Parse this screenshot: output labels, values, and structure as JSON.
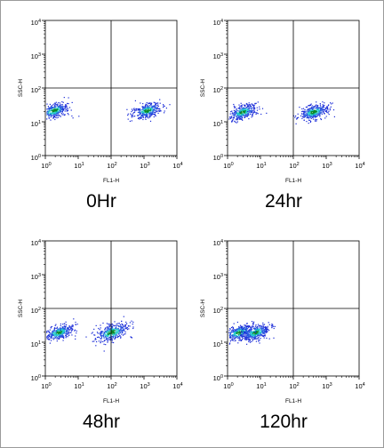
{
  "chart_data": [
    {
      "type": "scatter",
      "title": "0Hr",
      "xlabel": "FL1-H",
      "ylabel": "SSC-H",
      "xscale": "log",
      "yscale": "log",
      "xlim": [
        1,
        10000
      ],
      "ylim": [
        1,
        10000
      ],
      "xticks": [
        "10^0",
        "10^1",
        "10^2",
        "10^3",
        "10^4"
      ],
      "yticks": [
        "10^0",
        "10^1",
        "10^2",
        "10^3",
        "10^4"
      ],
      "quadrant_gate": {
        "x": 100,
        "y": 100
      },
      "populations": [
        {
          "center_x": 1.8,
          "center_y": 22,
          "relative_size": 1.0
        },
        {
          "center_x": 1200,
          "center_y": 22,
          "relative_size": 1.0
        }
      ]
    },
    {
      "type": "scatter",
      "title": "24hr",
      "xlabel": "FL1-H",
      "ylabel": "SSC-H",
      "xscale": "log",
      "yscale": "log",
      "xlim": [
        1,
        10000
      ],
      "ylim": [
        1,
        10000
      ],
      "xticks": [
        "10^0",
        "10^1",
        "10^2",
        "10^3",
        "10^4"
      ],
      "yticks": [
        "10^0",
        "10^1",
        "10^2",
        "10^3",
        "10^4"
      ],
      "quadrant_gate": {
        "x": 100,
        "y": 100
      },
      "populations": [
        {
          "center_x": 2.8,
          "center_y": 20,
          "relative_size": 1.0
        },
        {
          "center_x": 400,
          "center_y": 20,
          "relative_size": 1.0
        }
      ]
    },
    {
      "type": "scatter",
      "title": "48hr",
      "xlabel": "FL1-H",
      "ylabel": "SSC-H",
      "xscale": "log",
      "yscale": "log",
      "xlim": [
        1,
        10000
      ],
      "ylim": [
        1,
        10000
      ],
      "xticks": [
        "10^0",
        "10^1",
        "10^2",
        "10^3",
        "10^4"
      ],
      "yticks": [
        "10^0",
        "10^1",
        "10^2",
        "10^3",
        "10^4"
      ],
      "quadrant_gate": {
        "x": 100,
        "y": 100
      },
      "populations": [
        {
          "center_x": 2.5,
          "center_y": 20,
          "relative_size": 1.0
        },
        {
          "center_x": 100,
          "center_y": 20,
          "relative_size": 1.2
        }
      ]
    },
    {
      "type": "scatter",
      "title": "120hr",
      "xlabel": "FL1-H",
      "ylabel": "SSC-H",
      "xscale": "log",
      "yscale": "log",
      "xlim": [
        1,
        10000
      ],
      "ylim": [
        1,
        10000
      ],
      "xticks": [
        "10^0",
        "10^1",
        "10^2",
        "10^3",
        "10^4"
      ],
      "yticks": [
        "10^0",
        "10^1",
        "10^2",
        "10^3",
        "10^4"
      ],
      "quadrant_gate": {
        "x": 100,
        "y": 100
      },
      "populations": [
        {
          "center_x": 2.2,
          "center_y": 20,
          "relative_size": 1.0
        },
        {
          "center_x": 7,
          "center_y": 20,
          "relative_size": 1.0
        }
      ]
    }
  ],
  "colors": {
    "core": "#0a8a2a",
    "inner": "#1fc9c9",
    "middle": "#2a5de0",
    "outer": "#1a2bd8"
  }
}
